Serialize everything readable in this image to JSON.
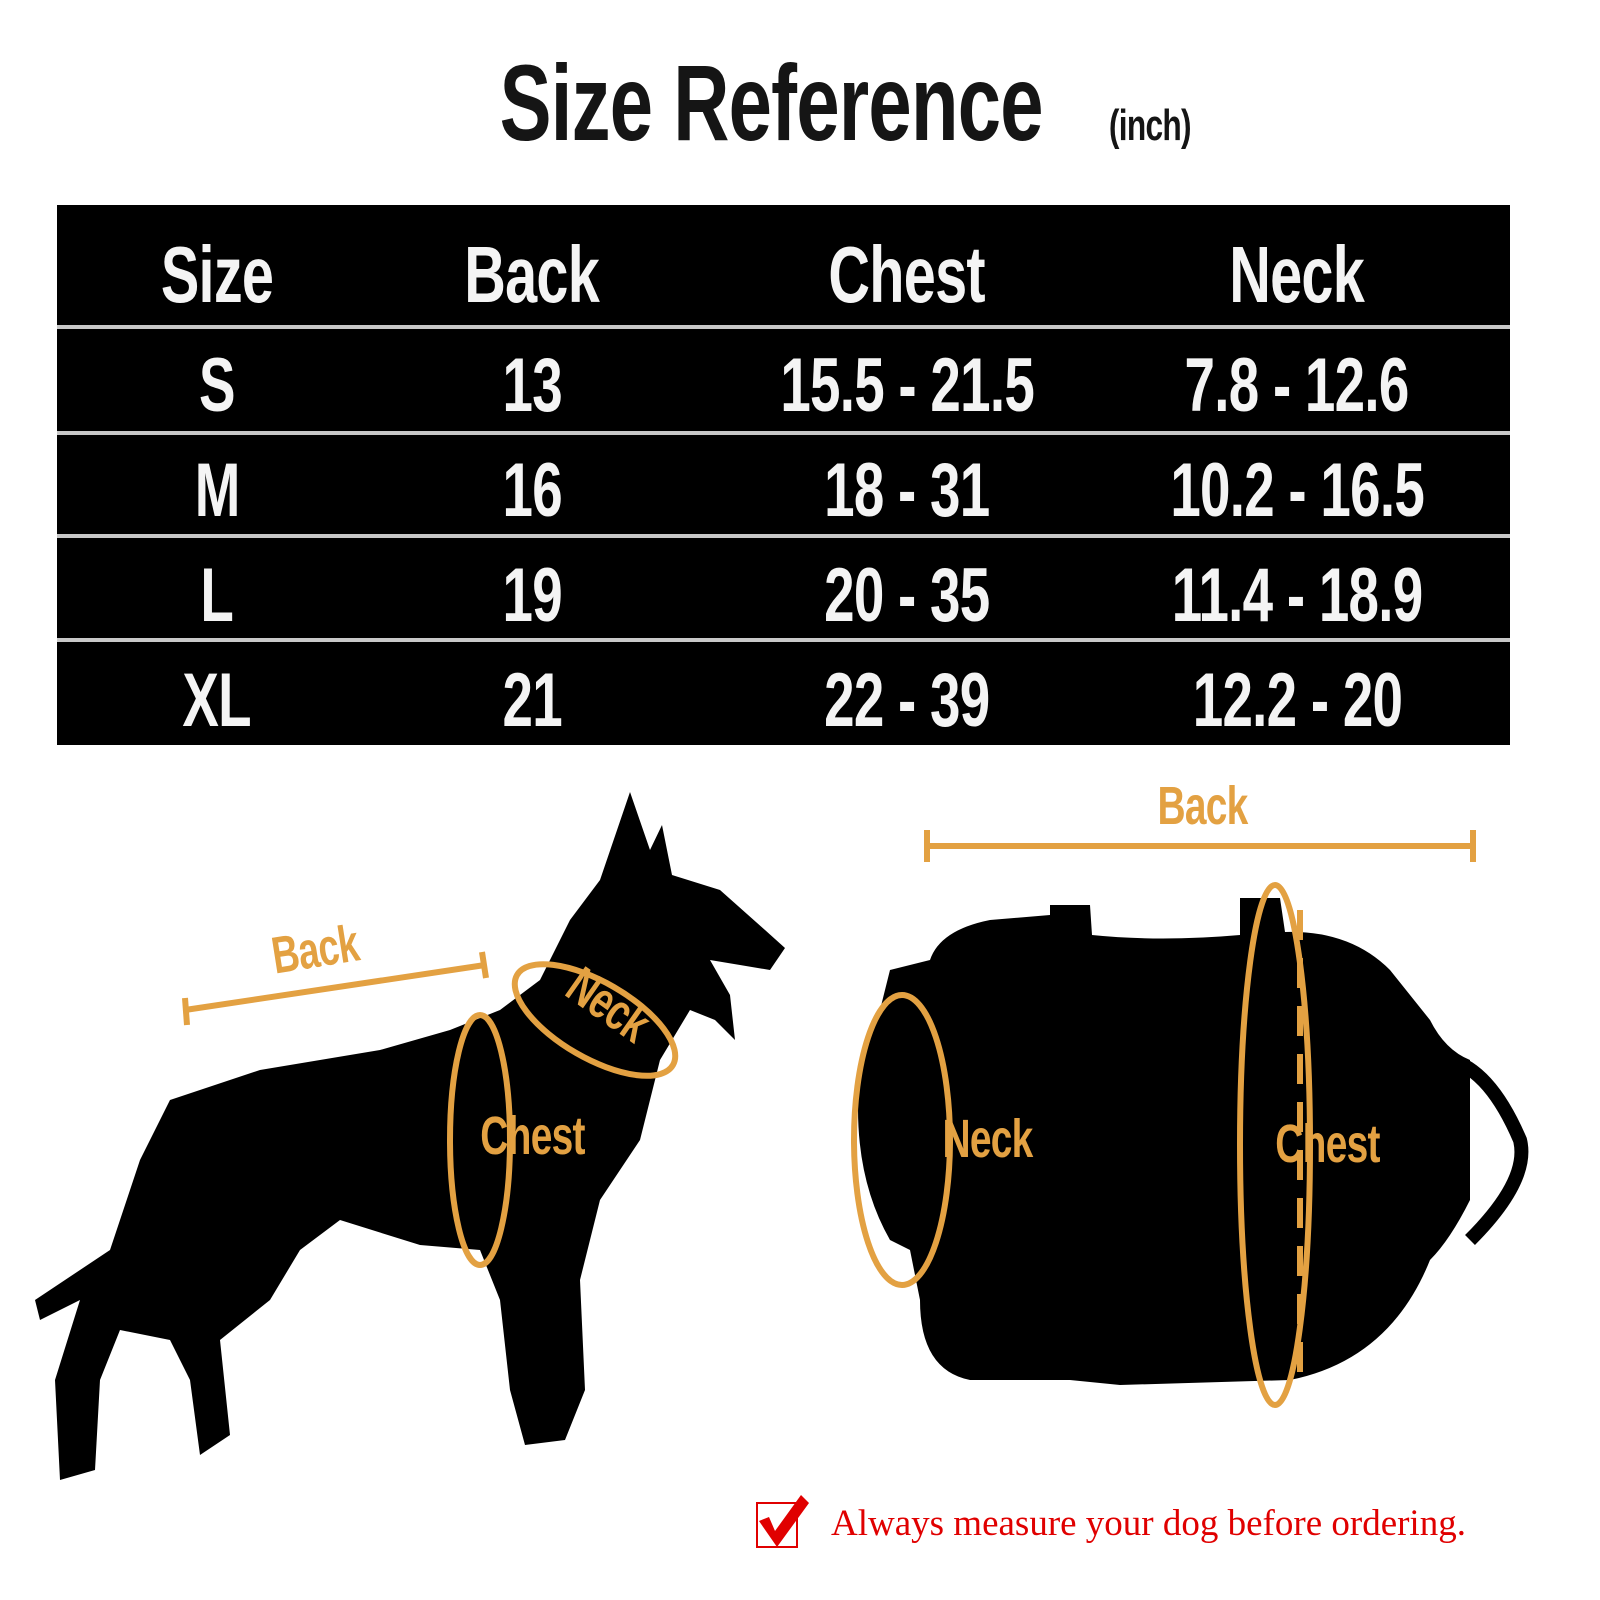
{
  "title": {
    "main": "Size Reference",
    "unit": "(inch)"
  },
  "table": {
    "headers": [
      "Size",
      "Back",
      "Chest",
      "Neck"
    ],
    "rows": [
      [
        "S",
        "13",
        "15.5 - 21.5",
        "7.8 - 12.6"
      ],
      [
        "M",
        "16",
        "18 - 31",
        "10.2 - 16.5"
      ],
      [
        "L",
        "19",
        "20 - 35",
        "11.4 - 18.9"
      ],
      [
        "XL",
        "21",
        "22 - 39",
        "12.2 - 20"
      ]
    ]
  },
  "dog_diagram": {
    "back": "Back",
    "neck": "Neck",
    "chest": "Chest"
  },
  "harness_diagram": {
    "back": "Back",
    "neck": "Neck",
    "chest": "Chest"
  },
  "note": {
    "icon": "checkbox-checked-icon",
    "text": "Always measure your dog before ordering."
  },
  "colors": {
    "accent": "#e3a142",
    "note": "#e00000",
    "table_bg": "#000000"
  }
}
